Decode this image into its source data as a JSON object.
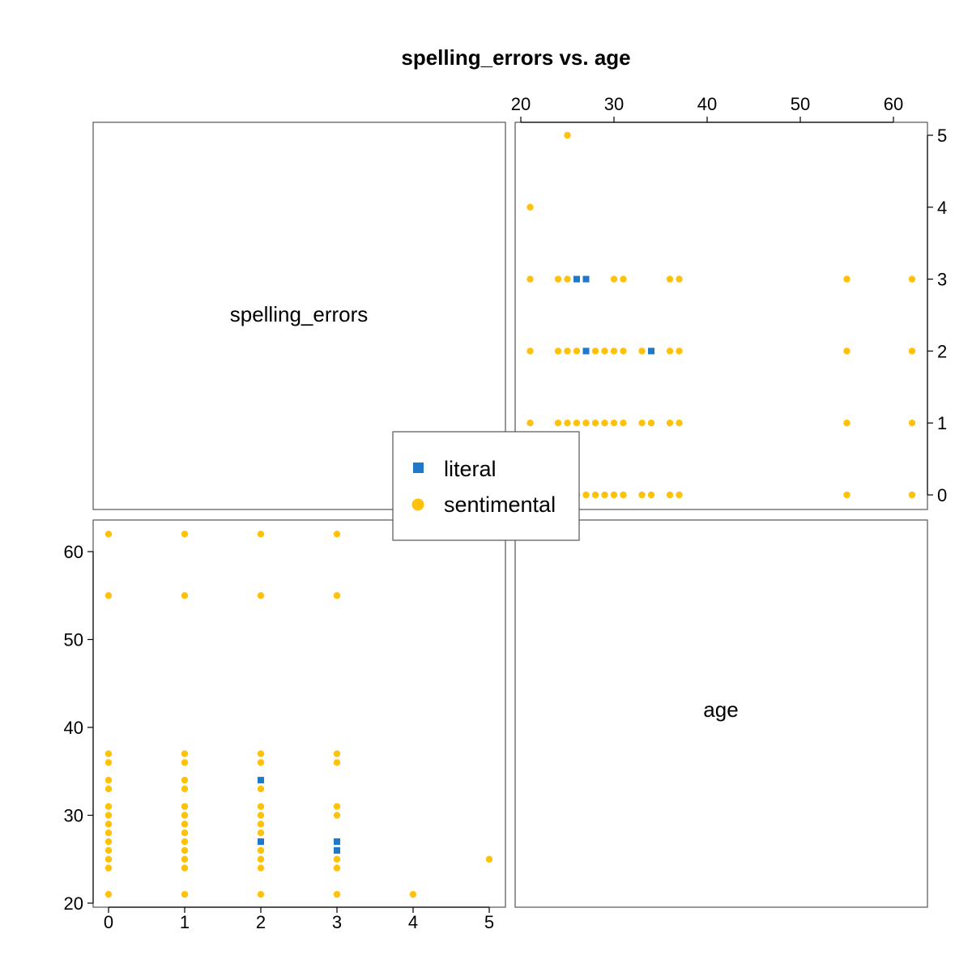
{
  "chart_data": {
    "type": "scatter",
    "title": "spelling_errors vs. age",
    "variables": [
      "spelling_errors",
      "age"
    ],
    "axes": {
      "spelling_errors": {
        "range": [
          0,
          5
        ],
        "ticks": [
          "0",
          "1",
          "2",
          "3",
          "4",
          "5"
        ]
      },
      "age": {
        "range": [
          21,
          62
        ],
        "ticks": [
          "20",
          "30",
          "40",
          "50",
          "60"
        ]
      }
    },
    "legend": {
      "placement": "center",
      "entries": [
        "literal",
        "sentimental"
      ]
    },
    "grid": false,
    "series": [
      {
        "name": "literal",
        "color": "#1F78C8",
        "marker": "square",
        "points": [
          [
            3,
            26
          ],
          [
            3,
            27
          ],
          [
            2,
            27
          ],
          [
            2,
            34
          ]
        ]
      },
      {
        "name": "sentimental",
        "color": "#FFC20A",
        "marker": "circle",
        "points": [
          [
            0,
            21
          ],
          [
            0,
            24
          ],
          [
            0,
            25
          ],
          [
            0,
            26
          ],
          [
            0,
            27
          ],
          [
            0,
            28
          ],
          [
            0,
            29
          ],
          [
            0,
            30
          ],
          [
            0,
            31
          ],
          [
            0,
            33
          ],
          [
            0,
            34
          ],
          [
            0,
            36
          ],
          [
            0,
            37
          ],
          [
            0,
            55
          ],
          [
            0,
            62
          ],
          [
            1,
            21
          ],
          [
            1,
            24
          ],
          [
            1,
            25
          ],
          [
            1,
            26
          ],
          [
            1,
            27
          ],
          [
            1,
            28
          ],
          [
            1,
            29
          ],
          [
            1,
            30
          ],
          [
            1,
            31
          ],
          [
            1,
            33
          ],
          [
            1,
            34
          ],
          [
            1,
            36
          ],
          [
            1,
            37
          ],
          [
            1,
            55
          ],
          [
            1,
            62
          ],
          [
            2,
            21
          ],
          [
            2,
            24
          ],
          [
            2,
            25
          ],
          [
            2,
            26
          ],
          [
            2,
            28
          ],
          [
            2,
            29
          ],
          [
            2,
            30
          ],
          [
            2,
            31
          ],
          [
            2,
            33
          ],
          [
            2,
            36
          ],
          [
            2,
            37
          ],
          [
            2,
            55
          ],
          [
            2,
            62
          ],
          [
            3,
            21
          ],
          [
            3,
            24
          ],
          [
            3,
            25
          ],
          [
            3,
            30
          ],
          [
            3,
            31
          ],
          [
            3,
            36
          ],
          [
            3,
            37
          ],
          [
            3,
            55
          ],
          [
            3,
            62
          ],
          [
            4,
            21
          ],
          [
            5,
            25
          ]
        ]
      }
    ]
  }
}
